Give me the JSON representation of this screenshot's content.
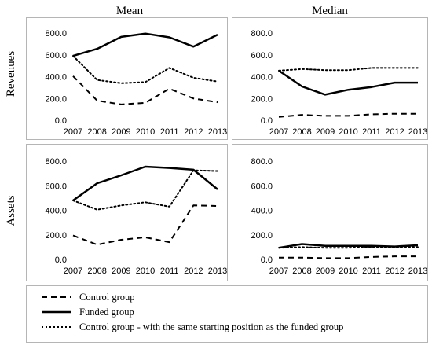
{
  "column_titles": [
    "Mean",
    "Median"
  ],
  "row_titles": [
    "Revenues",
    "Assets"
  ],
  "legend": [
    {
      "label": "Control group",
      "style": "dashed"
    },
    {
      "label": "Funded group",
      "style": "solid"
    },
    {
      "label": "Control group - with the same starting position as the funded group",
      "style": "dotted"
    }
  ],
  "chart_data": [
    {
      "type": "line",
      "panel": "revenues-mean",
      "x": [
        "2007",
        "2008",
        "2009",
        "2010",
        "2011",
        "2012",
        "2013"
      ],
      "ylim": [
        0,
        900
      ],
      "yticks": [
        "0.0",
        "200.0",
        "400.0",
        "600.0",
        "800.0"
      ],
      "series": [
        {
          "name": "Control group",
          "style": "dashed",
          "values": [
            405,
            180,
            145,
            160,
            290,
            200,
            165
          ]
        },
        {
          "name": "Funded group",
          "style": "solid",
          "values": [
            590,
            655,
            765,
            795,
            760,
            675,
            785
          ]
        },
        {
          "name": "Control group - with the same starting position as the funded group",
          "style": "dotted",
          "values": [
            590,
            370,
            340,
            350,
            480,
            390,
            355
          ]
        }
      ]
    },
    {
      "type": "line",
      "panel": "revenues-median",
      "x": [
        "2007",
        "2008",
        "2009",
        "2010",
        "2011",
        "2012",
        "2013"
      ],
      "ylim": [
        0,
        900
      ],
      "yticks": [
        "0.0",
        "200.0",
        "400.0",
        "600.0",
        "800.0"
      ],
      "series": [
        {
          "name": "Control group",
          "style": "dashed",
          "values": [
            30,
            50,
            40,
            40,
            55,
            60,
            60
          ]
        },
        {
          "name": "Funded group",
          "style": "solid",
          "values": [
            455,
            310,
            235,
            280,
            305,
            345,
            345
          ]
        },
        {
          "name": "Control group - with the same starting position as the funded group",
          "style": "dotted",
          "values": [
            455,
            470,
            460,
            460,
            480,
            480,
            480
          ]
        }
      ]
    },
    {
      "type": "line",
      "panel": "assets-mean",
      "x": [
        "2007",
        "2008",
        "2009",
        "2010",
        "2011",
        "2012",
        "2013"
      ],
      "ylim": [
        0,
        900
      ],
      "yticks": [
        "0.0",
        "200.0",
        "400.0",
        "600.0",
        "800.0"
      ],
      "series": [
        {
          "name": "Control group",
          "style": "dashed",
          "values": [
            195,
            120,
            160,
            180,
            140,
            440,
            435
          ]
        },
        {
          "name": "Funded group",
          "style": "solid",
          "values": [
            480,
            620,
            685,
            755,
            745,
            730,
            570
          ]
        },
        {
          "name": "Control group - with the same starting position as the funded group",
          "style": "dotted",
          "values": [
            480,
            405,
            440,
            465,
            430,
            725,
            720
          ]
        }
      ]
    },
    {
      "type": "line",
      "panel": "assets-median",
      "x": [
        "2007",
        "2008",
        "2009",
        "2010",
        "2011",
        "2012",
        "2013"
      ],
      "ylim": [
        0,
        900
      ],
      "yticks": [
        "0.0",
        "200.0",
        "400.0",
        "600.0",
        "800.0"
      ],
      "series": [
        {
          "name": "Control group",
          "style": "dashed",
          "values": [
            15,
            15,
            10,
            10,
            20,
            25,
            25
          ]
        },
        {
          "name": "Funded group",
          "style": "solid",
          "values": [
            95,
            125,
            110,
            110,
            110,
            105,
            115
          ]
        },
        {
          "name": "Control group - with the same starting position as the funded group",
          "style": "dotted",
          "values": [
            95,
            100,
            95,
            95,
            100,
            100,
            100
          ]
        }
      ]
    }
  ]
}
